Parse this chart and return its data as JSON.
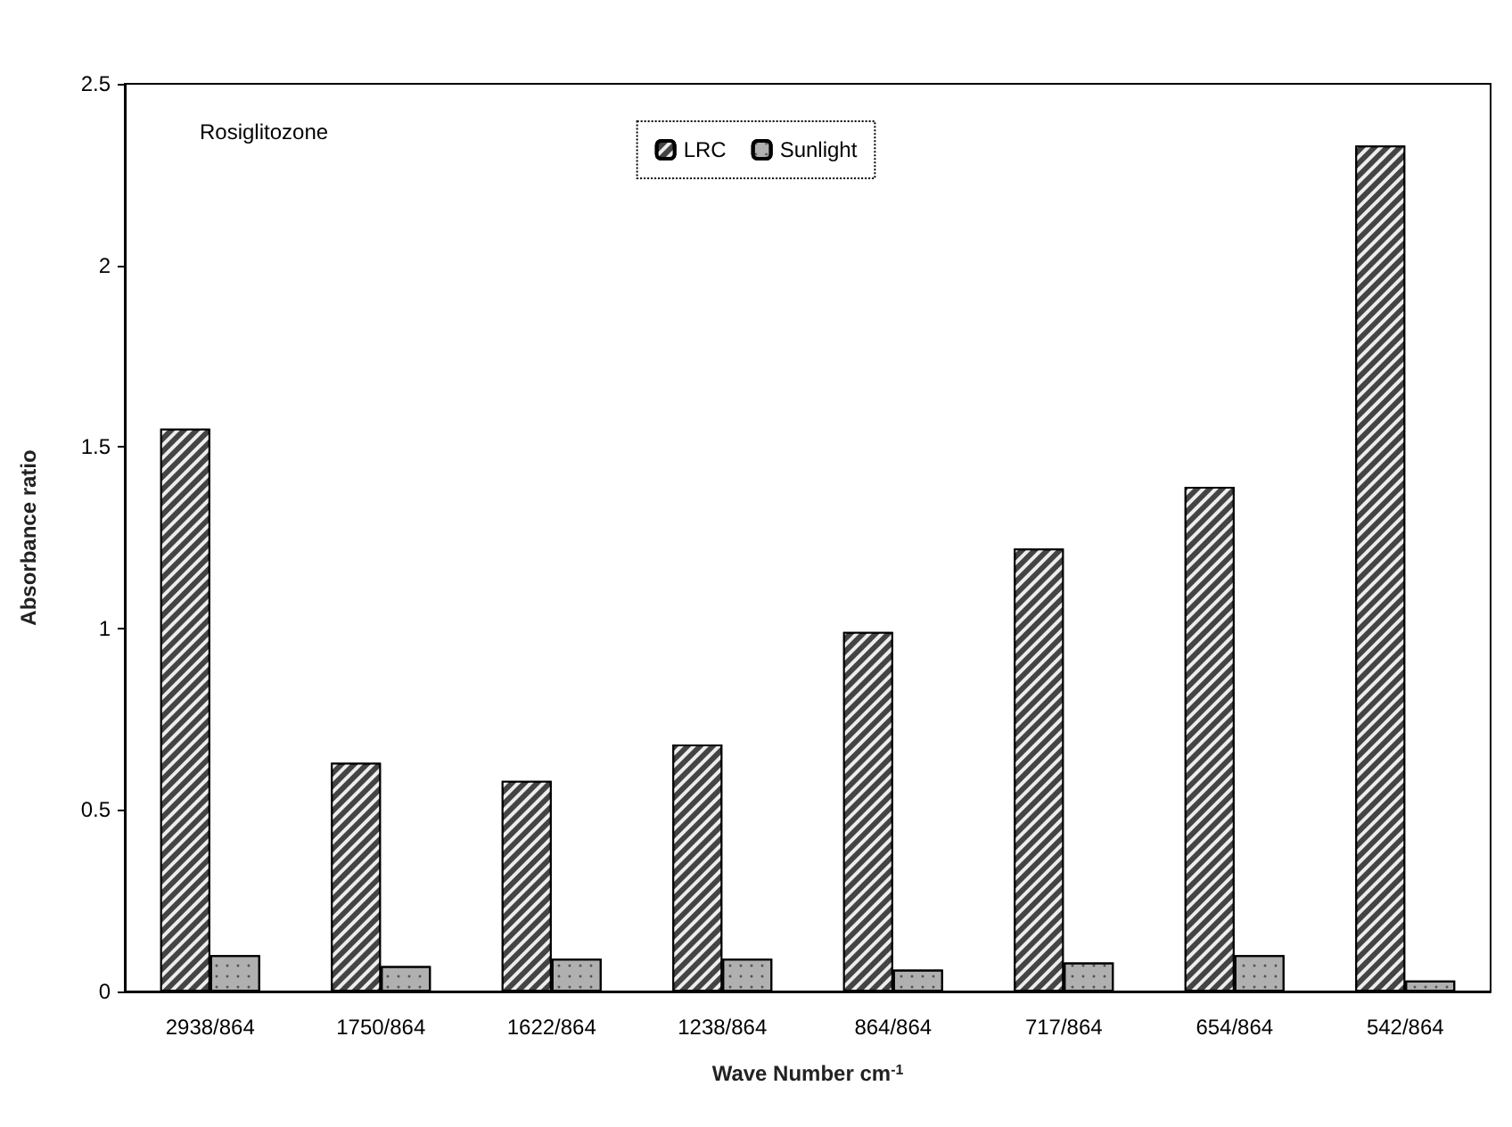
{
  "chart_data": {
    "type": "bar",
    "xlabel": "Wave Number cm$^{-1}$",
    "ylabel": "Absorbance ratio",
    "annotations": [
      "Rosiglitozone"
    ],
    "categories": [
      "2938/864",
      "1750/864",
      "1622/864",
      "1238/864",
      "864/864",
      "717/864",
      "654/864",
      "542/864"
    ],
    "series": [
      {
        "name": "LRC",
        "color": "#444444",
        "values": [
          1.55,
          0.63,
          0.58,
          0.68,
          0.99,
          1.22,
          1.39,
          2.33
        ]
      },
      {
        "name": "Sunlight",
        "color": "#b0b0b0",
        "values": [
          0.1,
          0.07,
          0.09,
          0.09,
          0.06,
          0.08,
          0.1,
          0.03
        ]
      }
    ],
    "ylim": [
      0,
      2.5
    ],
    "yticks": [
      0,
      0.5,
      1,
      1.5,
      2,
      2.5
    ],
    "grid": false,
    "legend": "top"
  }
}
